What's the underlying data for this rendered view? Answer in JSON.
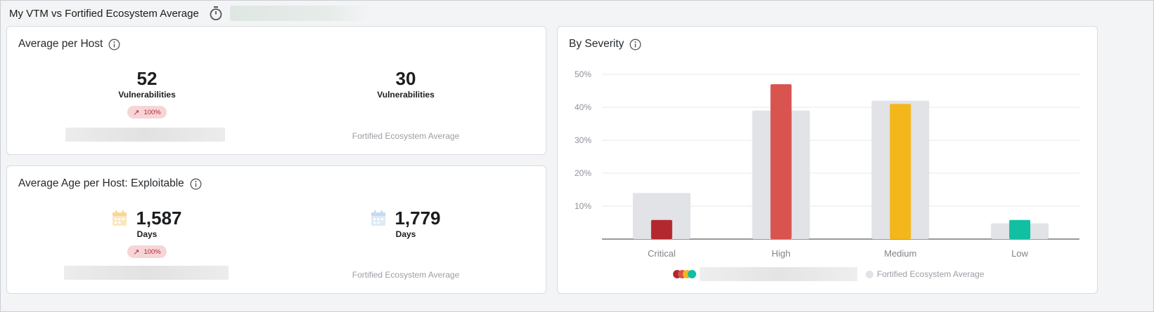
{
  "header": {
    "title": "My VTM vs Fortified Ecosystem Average",
    "timer_icon": "stopwatch-icon"
  },
  "avg_per_host": {
    "title": "Average per Host",
    "mine": {
      "value": "52",
      "unit": "Vulnerabilities",
      "delta": "100%"
    },
    "ecosystem": {
      "value": "30",
      "unit": "Vulnerabilities",
      "label": "Fortified Ecosystem Average"
    }
  },
  "avg_age": {
    "title": "Average Age per Host: Exploitable",
    "mine": {
      "value": "1,587",
      "unit": "Days",
      "delta": "100%"
    },
    "ecosystem": {
      "value": "1,779",
      "unit": "Days",
      "label": "Fortified Ecosystem Average"
    }
  },
  "by_severity": {
    "title": "By Severity",
    "legend_ecosystem": "Fortified Ecosystem Average"
  },
  "colors": {
    "critical": "#b3282e",
    "high": "#d9534f",
    "medium": "#f3b71b",
    "low": "#11bfa3",
    "ecosystem": "#e1e3e6",
    "badge_bg": "#f6d5d7",
    "badge_text": "#b22a31"
  },
  "chart_data": {
    "type": "bar",
    "categories": [
      "Critical",
      "High",
      "Medium",
      "Low"
    ],
    "series": [
      {
        "values": [
          5.8,
          47,
          41,
          5.8
        ],
        "colors": [
          "#b3282e",
          "#d9534f",
          "#f3b71b",
          "#11bfa3"
        ]
      },
      {
        "name": "Fortified Ecosystem Average",
        "values": [
          14,
          39,
          42,
          4.8
        ],
        "color": "#e1e3e6"
      }
    ],
    "yticks": [
      "10%",
      "20%",
      "30%",
      "40%",
      "50%"
    ],
    "ytick_values": [
      10,
      20,
      30,
      40,
      50
    ],
    "ylim": [
      0,
      50
    ],
    "grid": true,
    "legend_position": "bottom"
  }
}
